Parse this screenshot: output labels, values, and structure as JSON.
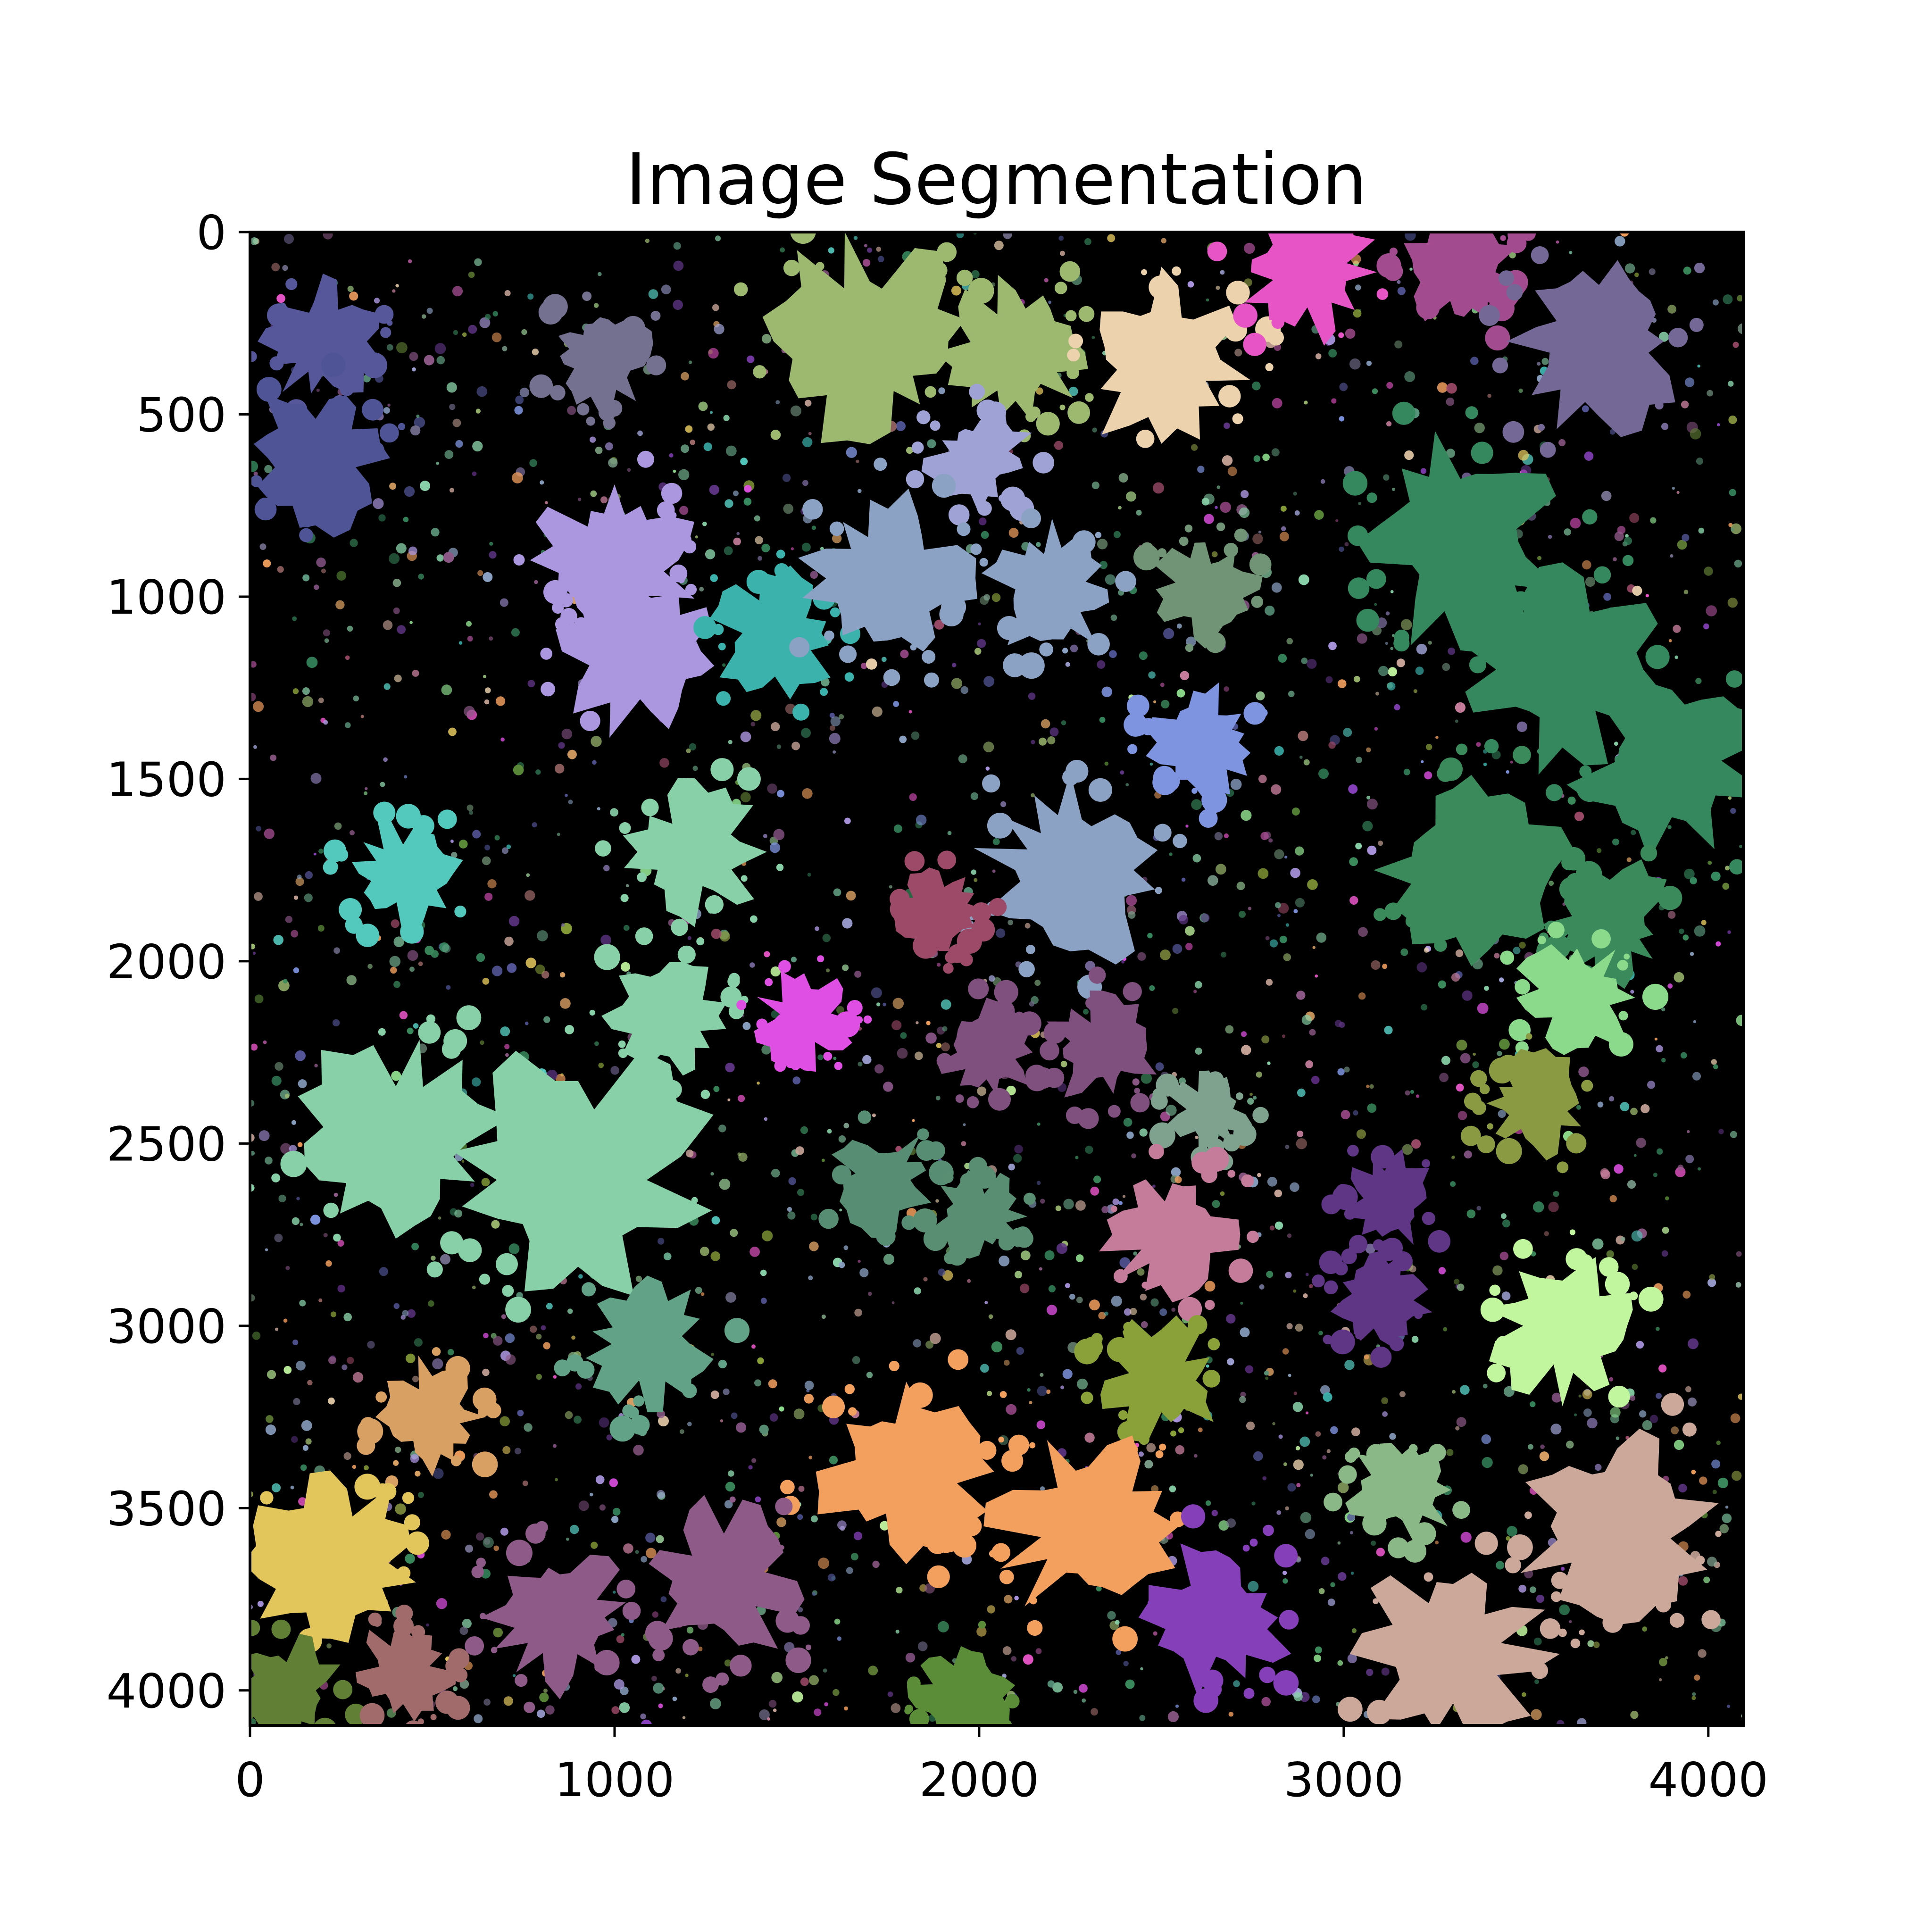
{
  "chart_data": {
    "type": "heatmap",
    "title": "Image Segmentation",
    "xlabel": "",
    "ylabel": "",
    "xlim": [
      0,
      4096
    ],
    "ylim": [
      4096,
      0
    ],
    "x_ticks": [
      0,
      1000,
      2000,
      3000,
      4000
    ],
    "x_tick_labels": [
      "0",
      "1000",
      "2000",
      "3000",
      "4000"
    ],
    "y_ticks": [
      0,
      500,
      1000,
      1500,
      2000,
      2500,
      3000,
      3500,
      4000
    ],
    "y_tick_labels": [
      "0",
      "500",
      "1000",
      "1500",
      "2000",
      "2500",
      "3000",
      "3500",
      "4000"
    ],
    "background_color": "#000000",
    "grid": false,
    "legend": "none",
    "segments": [
      {
        "cx": 200,
        "cy": 300,
        "r": 150,
        "color": "#55579a"
      },
      {
        "cx": 180,
        "cy": 620,
        "r": 180,
        "color": "#4f5496"
      },
      {
        "cx": 960,
        "cy": 340,
        "r": 130,
        "color": "#74708f"
      },
      {
        "cx": 1700,
        "cy": 300,
        "r": 260,
        "color": "#9cb96f"
      },
      {
        "cx": 2100,
        "cy": 330,
        "r": 180,
        "color": "#9cb96f"
      },
      {
        "cx": 2500,
        "cy": 350,
        "r": 220,
        "color": "#edd2ae"
      },
      {
        "cx": 2900,
        "cy": 110,
        "r": 170,
        "color": "#e754c6"
      },
      {
        "cx": 3330,
        "cy": 110,
        "r": 150,
        "color": "#a24c8f"
      },
      {
        "cx": 3700,
        "cy": 300,
        "r": 230,
        "color": "#746896"
      },
      {
        "cx": 2000,
        "cy": 620,
        "r": 130,
        "color": "#9fa2d5"
      },
      {
        "cx": 1000,
        "cy": 900,
        "r": 200,
        "color": "#ab96e0"
      },
      {
        "cx": 1100,
        "cy": 1150,
        "r": 220,
        "color": "#ab96e0"
      },
      {
        "cx": 1440,
        "cy": 1100,
        "r": 160,
        "color": "#3bb2ac"
      },
      {
        "cx": 1750,
        "cy": 950,
        "r": 210,
        "color": "#8ba2c4"
      },
      {
        "cx": 2200,
        "cy": 980,
        "r": 160,
        "color": "#8ba2c4"
      },
      {
        "cx": 2620,
        "cy": 980,
        "r": 130,
        "color": "#729476"
      },
      {
        "cx": 3320,
        "cy": 850,
        "r": 260,
        "color": "#35875d"
      },
      {
        "cx": 3900,
        "cy": 1450,
        "r": 240,
        "color": "#35875d"
      },
      {
        "cx": 3600,
        "cy": 1200,
        "r": 240,
        "color": "#35875d"
      },
      {
        "cx": 3350,
        "cy": 1750,
        "r": 230,
        "color": "#3a8a5c"
      },
      {
        "cx": 3730,
        "cy": 1900,
        "r": 160,
        "color": "#3a8a5c"
      },
      {
        "cx": 2620,
        "cy": 1400,
        "r": 140,
        "color": "#7e94e0"
      },
      {
        "cx": 2250,
        "cy": 1750,
        "r": 230,
        "color": "#8ba2c4"
      },
      {
        "cx": 420,
        "cy": 1760,
        "r": 140,
        "color": "#53c8bd"
      },
      {
        "cx": 1220,
        "cy": 1700,
        "r": 170,
        "color": "#88d1a8"
      },
      {
        "cx": 1150,
        "cy": 2150,
        "r": 160,
        "color": "#88d1a8"
      },
      {
        "cx": 900,
        "cy": 2600,
        "r": 330,
        "color": "#88d1a8"
      },
      {
        "cx": 400,
        "cy": 2500,
        "r": 280,
        "color": "#88d1a8"
      },
      {
        "cx": 1890,
        "cy": 1860,
        "r": 110,
        "color": "#9c4a68"
      },
      {
        "cx": 1520,
        "cy": 2160,
        "r": 120,
        "color": "#df4fe3"
      },
      {
        "cx": 2020,
        "cy": 2250,
        "r": 120,
        "color": "#7f4f7e"
      },
      {
        "cx": 2340,
        "cy": 2240,
        "r": 140,
        "color": "#7f4f7e"
      },
      {
        "cx": 3640,
        "cy": 2100,
        "r": 150,
        "color": "#8bd98a"
      },
      {
        "cx": 3520,
        "cy": 2390,
        "r": 130,
        "color": "#8a9a42"
      },
      {
        "cx": 1740,
        "cy": 2600,
        "r": 130,
        "color": "#578e73"
      },
      {
        "cx": 2000,
        "cy": 2700,
        "r": 110,
        "color": "#5a8e73"
      },
      {
        "cx": 2630,
        "cy": 2420,
        "r": 100,
        "color": "#7fa28e"
      },
      {
        "cx": 2530,
        "cy": 2750,
        "r": 170,
        "color": "#c47c9a"
      },
      {
        "cx": 3130,
        "cy": 2650,
        "r": 120,
        "color": "#5f3585"
      },
      {
        "cx": 3100,
        "cy": 2930,
        "r": 120,
        "color": "#5f3585"
      },
      {
        "cx": 3600,
        "cy": 3000,
        "r": 180,
        "color": "#c1f59e"
      },
      {
        "cx": 1090,
        "cy": 3050,
        "r": 170,
        "color": "#62a388"
      },
      {
        "cx": 500,
        "cy": 3250,
        "r": 140,
        "color": "#d9a063"
      },
      {
        "cx": 2500,
        "cy": 3150,
        "r": 150,
        "color": "#8aa139"
      },
      {
        "cx": 1800,
        "cy": 3400,
        "r": 230,
        "color": "#f3a05e"
      },
      {
        "cx": 2300,
        "cy": 3550,
        "r": 240,
        "color": "#f3a05e"
      },
      {
        "cx": 3160,
        "cy": 3450,
        "r": 130,
        "color": "#8ab887"
      },
      {
        "cx": 220,
        "cy": 3650,
        "r": 220,
        "color": "#e2c65c"
      },
      {
        "cx": 1300,
        "cy": 3700,
        "r": 200,
        "color": "#8e5a88"
      },
      {
        "cx": 850,
        "cy": 3800,
        "r": 180,
        "color": "#8e5a88"
      },
      {
        "cx": 2650,
        "cy": 3800,
        "r": 190,
        "color": "#8540b9"
      },
      {
        "cx": 3750,
        "cy": 3550,
        "r": 260,
        "color": "#cca89b"
      },
      {
        "cx": 3300,
        "cy": 3900,
        "r": 240,
        "color": "#cca89b"
      },
      {
        "cx": 100,
        "cy": 4000,
        "r": 140,
        "color": "#617f35"
      },
      {
        "cx": 1950,
        "cy": 4020,
        "r": 140,
        "color": "#5b8c38"
      },
      {
        "cx": 420,
        "cy": 3950,
        "r": 120,
        "color": "#a06b6a"
      }
    ]
  }
}
